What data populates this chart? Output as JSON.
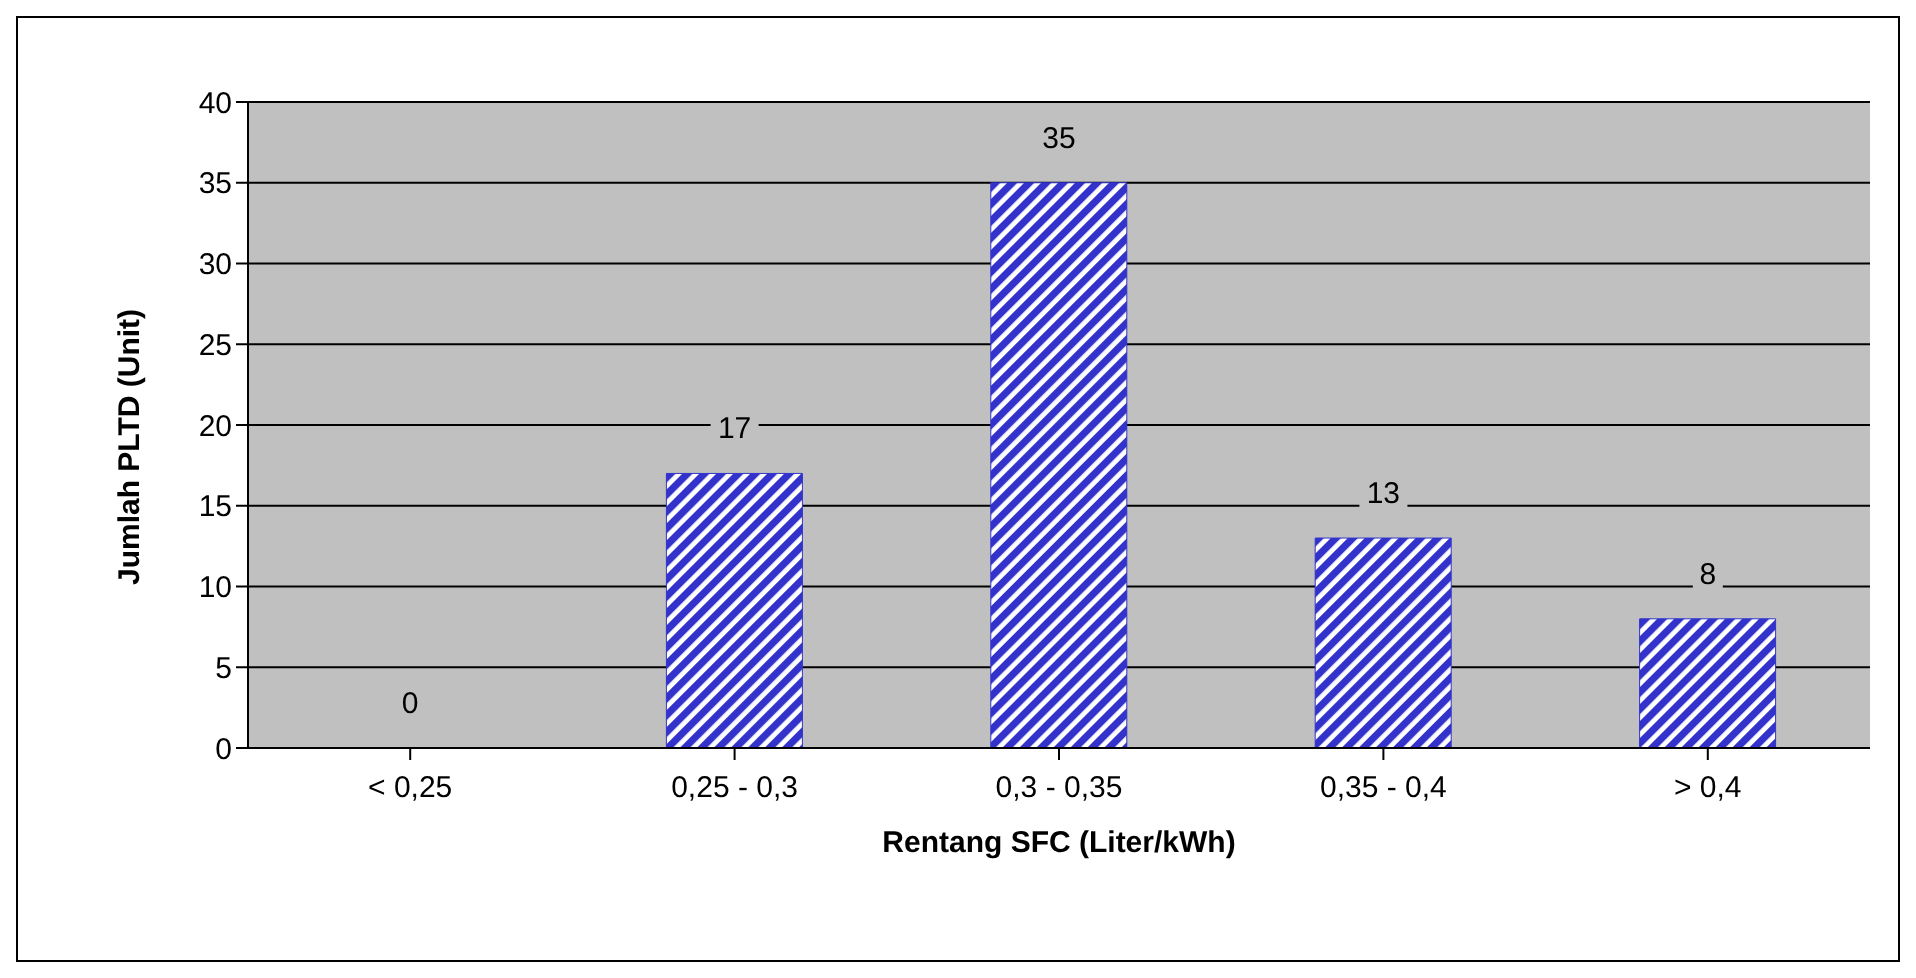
{
  "chart_data": {
    "type": "bar",
    "xlabel": "Rentang SFC (Liter/kWh)",
    "ylabel": "Jumlah PLTD (Unit)",
    "categories": [
      "< 0,25",
      "0,25 - 0,3",
      "0,3 - 0,35",
      "0,35 - 0,4",
      "> 0,4"
    ],
    "values": [
      0,
      17,
      35,
      13,
      8
    ],
    "color": "#3333cc",
    "ylim": [
      0,
      40
    ],
    "yticks": [
      0,
      5,
      10,
      15,
      20,
      25,
      30,
      35,
      40
    ],
    "grid": "y",
    "data_labels": true
  }
}
